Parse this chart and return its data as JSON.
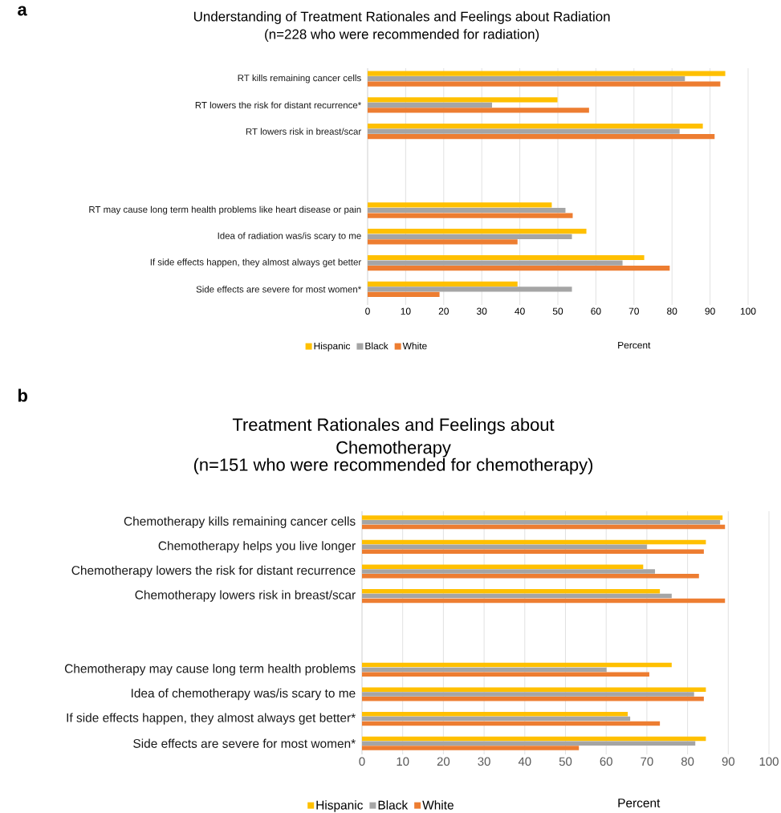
{
  "chart_data": [
    {
      "type": "bar",
      "orientation": "horizontal",
      "annotations": [
        "a"
      ],
      "title": "Understanding of Treatment Rationales and Feelings about Radiation",
      "subtitle": "(n=228 who were recommended for radiation)",
      "xlabel": "Percent",
      "categories": [
        "RT kills remaining cancer cells",
        "RT lowers the risk for distant recurrence*",
        "RT lowers risk in breast/scar",
        null,
        null,
        "RT may cause long term health problems like heart disease or pain",
        "Idea of radiation was/is scary to me",
        "If side effects happen, they almost always get better",
        "Side effects are severe for most women*"
      ],
      "series": [
        {
          "name": "Hispanic",
          "color": "#ffc000",
          "values": [
            94.0,
            49.9,
            88.1,
            null,
            null,
            48.4,
            57.5,
            72.7,
            39.4
          ]
        },
        {
          "name": "Black",
          "color": "#a5a5a5",
          "values": [
            83.4,
            32.7,
            82.0,
            null,
            null,
            52.0,
            53.7,
            67.0,
            53.7
          ]
        },
        {
          "name": "White",
          "color": "#ed7d31",
          "values": [
            92.7,
            58.2,
            91.2,
            null,
            null,
            53.9,
            39.4,
            79.4,
            18.9
          ]
        }
      ],
      "xlim": [
        0,
        100
      ],
      "xticks": [
        0,
        10,
        20,
        30,
        40,
        50,
        60,
        70,
        80,
        90,
        100
      ],
      "grid": "x",
      "legend": "bottom"
    },
    {
      "type": "bar",
      "orientation": "horizontal",
      "annotations": [
        "b"
      ],
      "title": "Treatment Rationales and Feelings about Chemotherapy",
      "subtitle": "(n=151 who were recommended for chemotherapy)",
      "xlabel": "Percent",
      "categories": [
        "Chemotherapy kills remaining cancer cells",
        "Chemotherapy helps you live longer",
        "Chemotherapy lowers the risk for distant recurrence",
        "Chemotherapy lowers risk in breast/scar",
        null,
        null,
        "Chemotherapy may cause long term health problems",
        "Idea of chemotherapy was/is scary to me",
        "If side effects happen, they almost always get better*",
        "Side effects are severe for most women*"
      ],
      "series": [
        {
          "name": "Hispanic",
          "color": "#ffc000",
          "values": [
            88.6,
            84.5,
            69.1,
            73.2,
            null,
            null,
            76.1,
            84.5,
            65.3,
            84.5
          ]
        },
        {
          "name": "Black",
          "color": "#a5a5a5",
          "values": [
            88.0,
            70.0,
            72.0,
            76.1,
            null,
            null,
            60.1,
            81.6,
            65.9,
            81.9
          ]
        },
        {
          "name": "White",
          "color": "#ed7d31",
          "values": [
            89.2,
            84.0,
            82.8,
            89.2,
            null,
            null,
            70.6,
            84.0,
            73.2,
            53.3
          ]
        }
      ],
      "xlim": [
        0,
        100
      ],
      "xticks": [
        0,
        10,
        20,
        30,
        40,
        50,
        60,
        70,
        80,
        90,
        100
      ],
      "grid": "x",
      "legend": "bottom"
    }
  ]
}
